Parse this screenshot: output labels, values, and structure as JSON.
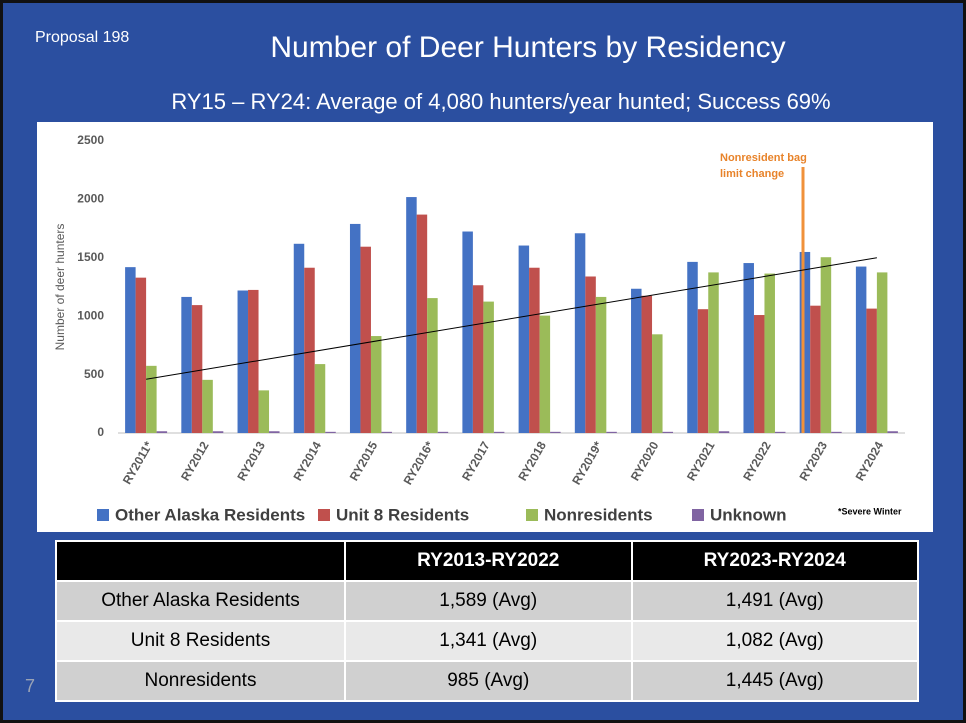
{
  "header": {
    "proposal": "Proposal 198",
    "title": "Number of Deer Hunters by Residency",
    "subtitle": "RY15 – RY24: Average of 4,080 hunters/year hunted; Success  69%",
    "page_number": "7"
  },
  "chart_data": {
    "type": "bar",
    "y_label": "Number of deer hunters",
    "annotation": "Nonresident bag limit change",
    "footnote": "*Severe Winter",
    "categories": [
      "RY2011*",
      "RY2012",
      "RY2013",
      "RY2014",
      "RY2015",
      "RY2016*",
      "RY2017",
      "RY2018",
      "RY2019*",
      "RY2020",
      "RY2021",
      "RY2022",
      "RY2023",
      "RY2024"
    ],
    "series": [
      {
        "name": "Other Alaska Residents",
        "color": "#4472c4",
        "values": [
          1420,
          1165,
          1220,
          1620,
          1790,
          2020,
          1725,
          1605,
          1710,
          1235,
          1465,
          1455,
          1550,
          1425
        ]
      },
      {
        "name": "Unit 8 Residents",
        "color": "#c0504d",
        "values": [
          1330,
          1095,
          1225,
          1415,
          1595,
          1870,
          1265,
          1415,
          1340,
          1175,
          1060,
          1010,
          1090,
          1065
        ]
      },
      {
        "name": "Nonresidents",
        "color": "#9bbb59",
        "values": [
          575,
          455,
          365,
          590,
          830,
          1155,
          1125,
          1005,
          1165,
          845,
          1375,
          1365,
          1505,
          1375
        ]
      },
      {
        "name": "Unknown",
        "color": "#8064a2",
        "values": [
          15,
          15,
          15,
          10,
          10,
          10,
          10,
          10,
          10,
          10,
          15,
          10,
          10,
          15
        ]
      }
    ],
    "trendline": {
      "start": 460,
      "end": 1500,
      "color": "#000000"
    },
    "ylim": [
      0,
      2500
    ],
    "yticks": [
      0,
      500,
      1000,
      1500,
      2000,
      2500
    ],
    "grid": false
  },
  "table": {
    "columns": [
      "RY2013-RY2022",
      "RY2023-RY2024"
    ],
    "rows": [
      [
        "Other Alaska Residents",
        "1,589 (Avg)",
        "1,491 (Avg)"
      ],
      [
        "Unit 8 Residents",
        "1,341 (Avg)",
        "1,082 (Avg)"
      ],
      [
        "Nonresidents",
        "985 (Avg)",
        "1,445 (Avg)"
      ]
    ]
  }
}
